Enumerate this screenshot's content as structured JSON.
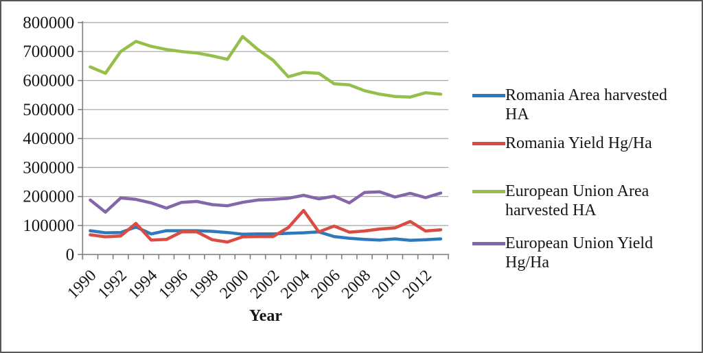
{
  "chart_data": {
    "type": "line",
    "title": "",
    "xlabel": "Year",
    "ylabel": "",
    "ylim": [
      0,
      800000
    ],
    "y_tick_interval": 100000,
    "y_tick_labels": [
      "800000",
      "700000",
      "600000",
      "500000",
      "400000",
      "300000",
      "200000",
      "100000",
      "0"
    ],
    "grid": true,
    "legend_position": "right",
    "x": [
      1990,
      1991,
      1992,
      1993,
      1994,
      1995,
      1996,
      1997,
      1998,
      1999,
      2000,
      2001,
      2002,
      2003,
      2004,
      2005,
      2006,
      2007,
      2008,
      2009,
      2010,
      2011,
      2012,
      2013
    ],
    "x_tick_labels": [
      "1990",
      "1992",
      "1994",
      "1996",
      "1998",
      "2000",
      "2002",
      "2004",
      "2006",
      "2008",
      "2010",
      "2012"
    ],
    "series": [
      {
        "name": "Romania Area harvested HA",
        "color": "#2e79bc",
        "values": [
          82000,
          75000,
          76000,
          95000,
          71000,
          82000,
          82000,
          82000,
          80000,
          76000,
          70000,
          71000,
          71000,
          73000,
          75000,
          78000,
          62000,
          56000,
          52000,
          50000,
          54000,
          49000,
          51000,
          54000
        ]
      },
      {
        "name": "Romania Yield Hg/Ha",
        "color": "#d84c42",
        "values": [
          68000,
          61000,
          64000,
          107000,
          50000,
          52000,
          78000,
          78000,
          51000,
          43000,
          61000,
          62000,
          62000,
          93000,
          152000,
          78000,
          98000,
          77000,
          81000,
          88000,
          92000,
          114000,
          81000,
          85000
        ]
      },
      {
        "name": "European Union Area harvested HA",
        "color": "#95bf4a",
        "values": [
          647000,
          625000,
          700000,
          735000,
          718000,
          707000,
          700000,
          695000,
          685000,
          673000,
          752000,
          707000,
          670000,
          613000,
          628000,
          625000,
          589000,
          585000,
          565000,
          553000,
          545000,
          543000,
          558000,
          553000
        ]
      },
      {
        "name": "European Union Yield Hg/Ha",
        "color": "#8566a8",
        "values": [
          188000,
          146000,
          195000,
          190000,
          178000,
          160000,
          180000,
          183000,
          172000,
          168000,
          180000,
          188000,
          190000,
          194000,
          204000,
          192000,
          201000,
          178000,
          214000,
          216000,
          198000,
          211000,
          196000,
          212000
        ]
      }
    ],
    "style": {
      "gridline_color": "#a3a3a3",
      "axis_color": "#7f7f7f",
      "figure_border_color": "#57585a"
    }
  }
}
